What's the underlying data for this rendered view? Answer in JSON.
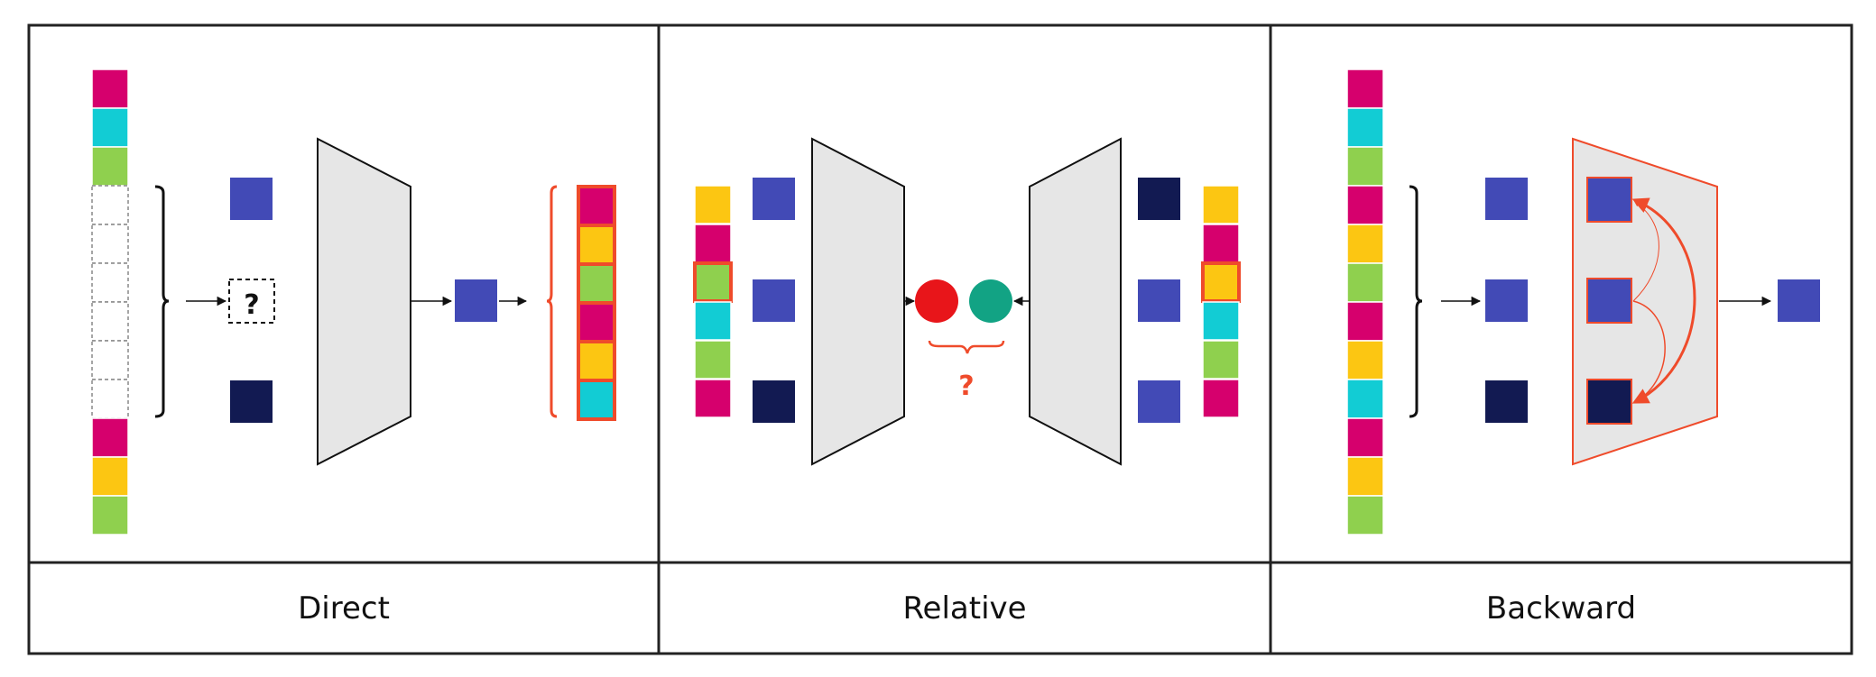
{
  "colors": {
    "magenta": "#d6006d",
    "cyan": "#12ccd4",
    "green": "#8fd04e",
    "yellow": "#fcc612",
    "blue": "#424ab6",
    "navy": "#121a52",
    "red": "#e8151a",
    "teal": "#12a384",
    "accent": "#ef4b2b",
    "encoder": "#e6e6e6"
  },
  "panels": [
    {
      "id": "direct",
      "label": "Direct"
    },
    {
      "id": "relative",
      "label": "Relative"
    },
    {
      "id": "backward",
      "label": "Backward"
    }
  ],
  "direct": {
    "input_tokens": [
      "magenta",
      "cyan",
      "green",
      "masked",
      "masked",
      "masked",
      "masked",
      "masked",
      "masked",
      "magenta",
      "yellow",
      "green"
    ],
    "unknown_symbol": "?",
    "predicted_tokens": [
      "magenta",
      "yellow",
      "green",
      "magenta",
      "yellow",
      "cyan"
    ]
  },
  "relative": {
    "left_tokens": [
      "yellow",
      "magenta",
      "green",
      "cyan",
      "green",
      "magenta"
    ],
    "left_highlight_index": 2,
    "right_tokens": [
      "yellow",
      "magenta",
      "yellow",
      "cyan",
      "green",
      "magenta"
    ],
    "right_highlight_index": 2,
    "comparison_symbol": "?"
  },
  "backward": {
    "input_tokens": [
      "magenta",
      "cyan",
      "green",
      "magenta",
      "yellow",
      "green",
      "magenta",
      "yellow",
      "cyan",
      "magenta",
      "yellow",
      "green"
    ]
  }
}
